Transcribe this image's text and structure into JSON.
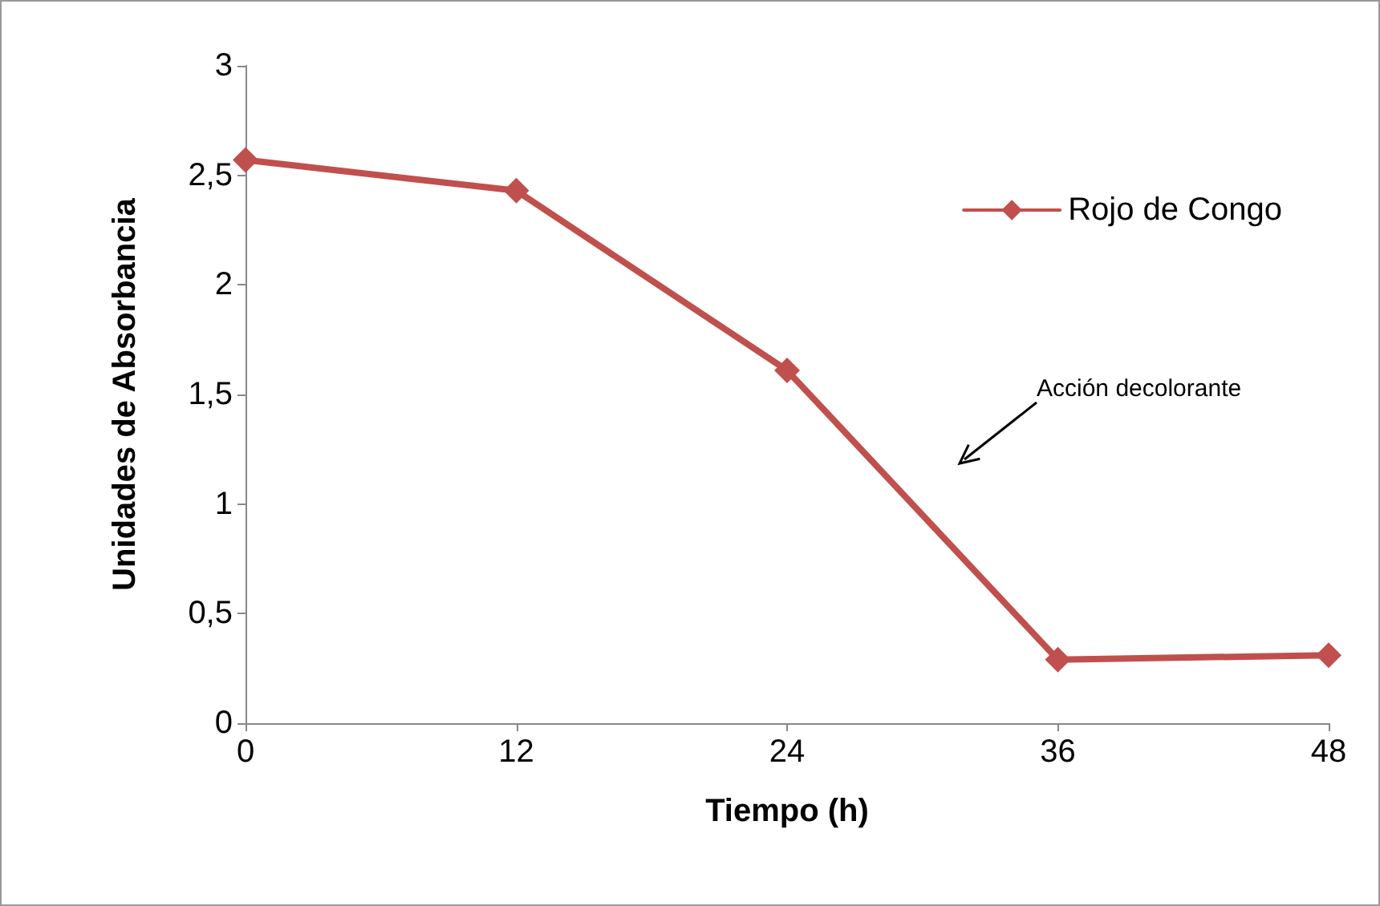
{
  "chart_data": {
    "type": "line",
    "xlabel": "Tiempo (h)",
    "ylabel": "Unidades de Absorbancia",
    "x": [
      0,
      12,
      24,
      36,
      48
    ],
    "series": [
      {
        "name": "Rojo de Congo",
        "color": "#c0504d",
        "values": [
          2.57,
          2.43,
          1.61,
          0.29,
          0.31
        ]
      }
    ],
    "xlim": [
      0,
      48
    ],
    "xticks": [
      0,
      12,
      24,
      36,
      48
    ],
    "ylim": [
      0,
      3
    ],
    "yticks": [
      0,
      {
        "value": 0.5,
        "label": "0,5"
      },
      1,
      {
        "value": 1.5,
        "label": "1,5"
      },
      2,
      {
        "value": 2.5,
        "label": "2,5"
      },
      3
    ],
    "grid": false,
    "legend": "top right",
    "marker": "diamond",
    "line_style": "solid",
    "annotations": [
      "Acción decolorante"
    ]
  }
}
